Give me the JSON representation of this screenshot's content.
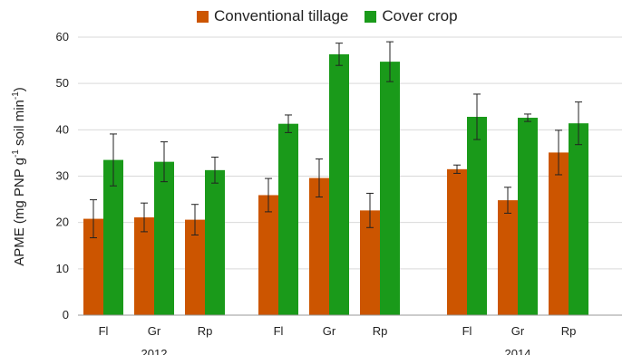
{
  "chart_data": {
    "type": "bar",
    "ylabel": "APME (mg PNP g",
    "ylabel_sup1": "-1",
    "ylabel_mid": " soil min",
    "ylabel_sup2": "-1",
    "ylabel_end": ")",
    "ylim": [
      0,
      60
    ],
    "yticks": [
      0,
      10,
      20,
      30,
      40,
      50,
      60
    ],
    "grid": true,
    "legend_position": "top",
    "groups": [
      {
        "label": "2012",
        "categories": [
          "Fl",
          "Gr",
          "Rp"
        ]
      },
      {
        "label": "",
        "categories": [
          "Fl",
          "Gr",
          "Rp"
        ]
      },
      {
        "label": "2014",
        "categories": [
          "Fl",
          "Gr",
          "Rp"
        ]
      }
    ],
    "series": [
      {
        "name": "Conventional tillage",
        "color": "#cc5500",
        "values": [
          20.8,
          21.1,
          20.6,
          25.9,
          29.6,
          22.6,
          31.5,
          24.8,
          35.1
        ],
        "errors": [
          4.1,
          3.1,
          3.3,
          3.6,
          4.1,
          3.7,
          0.9,
          2.8,
          4.8
        ]
      },
      {
        "name": "Cover crop",
        "color": "#1a9a1a",
        "values": [
          33.5,
          33.1,
          31.3,
          41.3,
          56.3,
          54.7,
          42.8,
          42.6,
          41.4
        ],
        "errors": [
          5.6,
          4.3,
          2.8,
          1.9,
          2.4,
          4.3,
          4.9,
          0.8,
          4.6
        ]
      }
    ]
  }
}
